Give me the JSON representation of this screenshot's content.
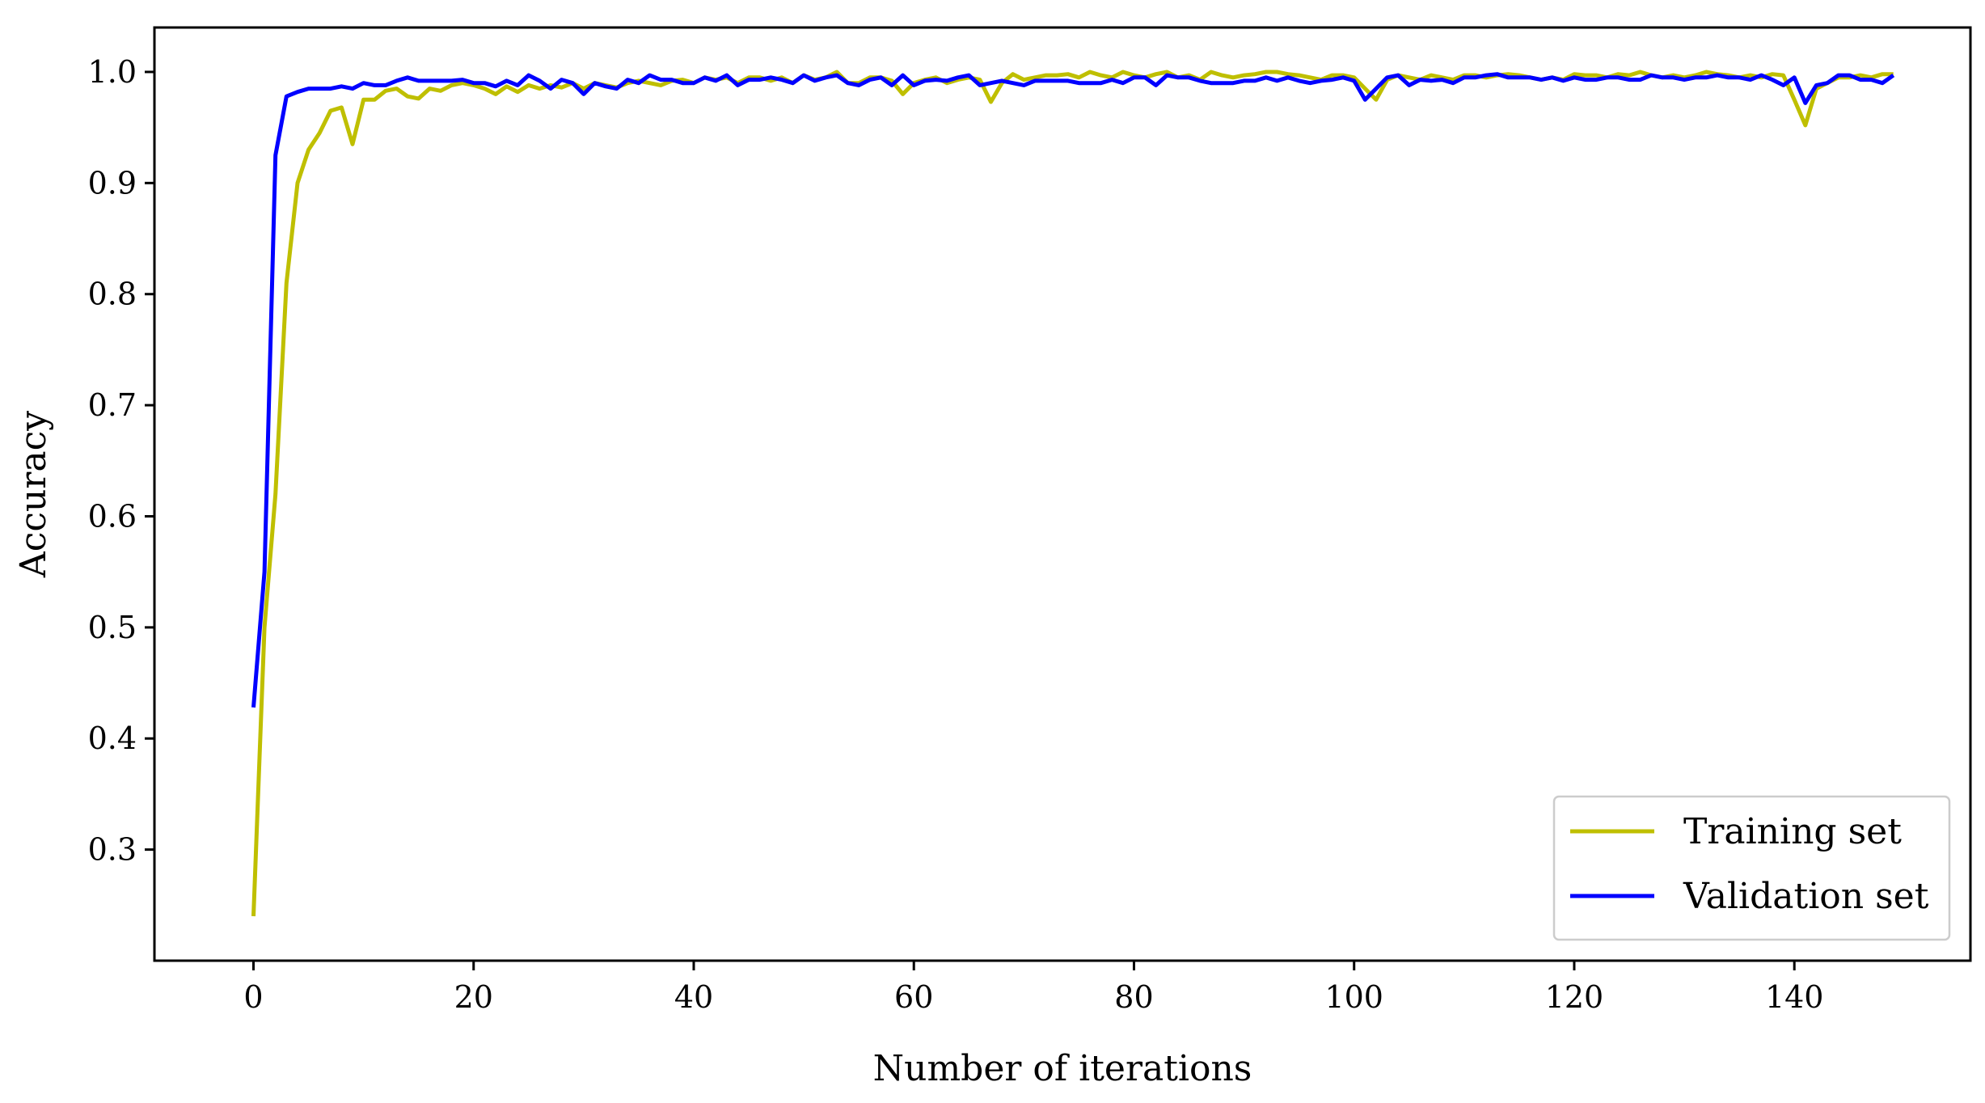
{
  "chart_data": {
    "type": "line",
    "title": "",
    "xlabel": "Number of iterations",
    "ylabel": "Accuracy",
    "xlim": [
      -9,
      156
    ],
    "ylim": [
      0.2,
      1.04
    ],
    "xticks": [
      0,
      20,
      40,
      60,
      80,
      100,
      120,
      140
    ],
    "yticks": [
      0.3,
      0.4,
      0.5,
      0.6,
      0.7,
      0.8,
      0.9,
      1.0
    ],
    "xtick_labels": [
      "0",
      "20",
      "40",
      "60",
      "80",
      "100",
      "120",
      "140"
    ],
    "ytick_labels": [
      "0.3",
      "0.4",
      "0.5",
      "0.6",
      "0.7",
      "0.8",
      "0.9",
      "1.0"
    ],
    "grid": false,
    "legend_position": "bottom-right",
    "series": [
      {
        "name": "Training set",
        "color": "#bfbf00",
        "x": [
          0,
          1,
          2,
          3,
          4,
          5,
          6,
          7,
          8,
          9,
          10,
          11,
          12,
          13,
          14,
          15,
          16,
          17,
          18,
          19,
          20,
          21,
          22,
          23,
          24,
          25,
          26,
          27,
          28,
          29,
          30,
          31,
          32,
          33,
          34,
          35,
          36,
          37,
          38,
          39,
          40,
          41,
          42,
          43,
          44,
          45,
          46,
          47,
          48,
          49,
          50,
          51,
          52,
          53,
          54,
          55,
          56,
          57,
          58,
          59,
          60,
          61,
          62,
          63,
          64,
          65,
          66,
          67,
          68,
          69,
          70,
          71,
          72,
          73,
          74,
          75,
          76,
          77,
          78,
          79,
          80,
          81,
          82,
          83,
          84,
          85,
          86,
          87,
          88,
          89,
          90,
          91,
          92,
          93,
          94,
          95,
          96,
          97,
          98,
          99,
          100,
          101,
          102,
          103,
          104,
          105,
          106,
          107,
          108,
          109,
          110,
          111,
          112,
          113,
          114,
          115,
          116,
          117,
          118,
          119,
          120,
          121,
          122,
          123,
          124,
          125,
          126,
          127,
          128,
          129,
          130,
          131,
          132,
          133,
          134,
          135,
          136,
          137,
          138,
          139,
          140,
          141,
          142,
          143,
          144,
          145,
          146,
          147,
          148,
          149
        ],
        "y": [
          0.24,
          0.5,
          0.62,
          0.81,
          0.9,
          0.93,
          0.945,
          0.965,
          0.968,
          0.935,
          0.975,
          0.975,
          0.983,
          0.985,
          0.978,
          0.976,
          0.985,
          0.983,
          0.988,
          0.99,
          0.988,
          0.985,
          0.98,
          0.987,
          0.982,
          0.988,
          0.985,
          0.988,
          0.986,
          0.99,
          0.985,
          0.99,
          0.988,
          0.986,
          0.99,
          0.992,
          0.99,
          0.988,
          0.992,
          0.993,
          0.99,
          0.995,
          0.993,
          0.995,
          0.99,
          0.995,
          0.995,
          0.992,
          0.995,
          0.99,
          0.997,
          0.993,
          0.995,
          1.0,
          0.99,
          0.99,
          0.995,
          0.995,
          0.992,
          0.98,
          0.99,
          0.993,
          0.995,
          0.99,
          0.993,
          0.995,
          0.993,
          0.973,
          0.99,
          0.998,
          0.993,
          0.995,
          0.997,
          0.997,
          0.998,
          0.995,
          1.0,
          0.997,
          0.995,
          1.0,
          0.997,
          0.995,
          0.998,
          1.0,
          0.995,
          0.997,
          0.993,
          1.0,
          0.997,
          0.995,
          0.997,
          0.998,
          1.0,
          1.0,
          0.998,
          0.997,
          0.995,
          0.993,
          0.997,
          0.997,
          0.995,
          0.985,
          0.975,
          0.993,
          0.997,
          0.995,
          0.993,
          0.997,
          0.995,
          0.993,
          0.997,
          0.997,
          0.995,
          0.997,
          0.998,
          0.997,
          0.995,
          0.993,
          0.995,
          0.993,
          0.998,
          0.997,
          0.997,
          0.995,
          0.998,
          0.997,
          1.0,
          0.997,
          0.995,
          0.997,
          0.995,
          0.997,
          1.0,
          0.998,
          0.997,
          0.995,
          0.997,
          0.995,
          0.998,
          0.997,
          0.975,
          0.952,
          0.985,
          0.99,
          0.995,
          0.995,
          0.997,
          0.995,
          0.998,
          0.998
        ]
      },
      {
        "name": "Validation set",
        "color": "#0000ff",
        "x": [
          0,
          1,
          2,
          3,
          4,
          5,
          6,
          7,
          8,
          9,
          10,
          11,
          12,
          13,
          14,
          15,
          16,
          17,
          18,
          19,
          20,
          21,
          22,
          23,
          24,
          25,
          26,
          27,
          28,
          29,
          30,
          31,
          32,
          33,
          34,
          35,
          36,
          37,
          38,
          39,
          40,
          41,
          42,
          43,
          44,
          45,
          46,
          47,
          48,
          49,
          50,
          51,
          52,
          53,
          54,
          55,
          56,
          57,
          58,
          59,
          60,
          61,
          62,
          63,
          64,
          65,
          66,
          67,
          68,
          69,
          70,
          71,
          72,
          73,
          74,
          75,
          76,
          77,
          78,
          79,
          80,
          81,
          82,
          83,
          84,
          85,
          86,
          87,
          88,
          89,
          90,
          91,
          92,
          93,
          94,
          95,
          96,
          97,
          98,
          99,
          100,
          101,
          102,
          103,
          104,
          105,
          106,
          107,
          108,
          109,
          110,
          111,
          112,
          113,
          114,
          115,
          116,
          117,
          118,
          119,
          120,
          121,
          122,
          123,
          124,
          125,
          126,
          127,
          128,
          129,
          130,
          131,
          132,
          133,
          134,
          135,
          136,
          137,
          138,
          139,
          140,
          141,
          142,
          143,
          144,
          145,
          146,
          147,
          148,
          149
        ],
        "y": [
          0.428,
          0.55,
          0.925,
          0.978,
          0.982,
          0.985,
          0.985,
          0.985,
          0.987,
          0.985,
          0.99,
          0.988,
          0.988,
          0.992,
          0.995,
          0.992,
          0.992,
          0.992,
          0.992,
          0.993,
          0.99,
          0.99,
          0.987,
          0.992,
          0.988,
          0.997,
          0.992,
          0.985,
          0.993,
          0.99,
          0.98,
          0.99,
          0.987,
          0.985,
          0.993,
          0.99,
          0.997,
          0.993,
          0.993,
          0.99,
          0.99,
          0.995,
          0.992,
          0.997,
          0.988,
          0.993,
          0.993,
          0.995,
          0.993,
          0.99,
          0.997,
          0.992,
          0.995,
          0.997,
          0.99,
          0.988,
          0.993,
          0.995,
          0.988,
          0.997,
          0.988,
          0.992,
          0.993,
          0.992,
          0.995,
          0.997,
          0.988,
          0.99,
          0.992,
          0.99,
          0.988,
          0.992,
          0.992,
          0.992,
          0.992,
          0.99,
          0.99,
          0.99,
          0.993,
          0.99,
          0.995,
          0.995,
          0.988,
          0.997,
          0.995,
          0.995,
          0.992,
          0.99,
          0.99,
          0.99,
          0.992,
          0.992,
          0.995,
          0.992,
          0.995,
          0.992,
          0.99,
          0.992,
          0.993,
          0.995,
          0.992,
          0.975,
          0.985,
          0.995,
          0.997,
          0.988,
          0.993,
          0.992,
          0.993,
          0.99,
          0.995,
          0.995,
          0.997,
          0.998,
          0.995,
          0.995,
          0.995,
          0.993,
          0.995,
          0.992,
          0.995,
          0.993,
          0.993,
          0.995,
          0.995,
          0.993,
          0.993,
          0.997,
          0.995,
          0.995,
          0.993,
          0.995,
          0.995,
          0.997,
          0.995,
          0.995,
          0.993,
          0.997,
          0.993,
          0.988,
          0.995,
          0.972,
          0.988,
          0.99,
          0.997,
          0.997,
          0.993,
          0.993,
          0.99,
          0.997
        ]
      }
    ]
  }
}
